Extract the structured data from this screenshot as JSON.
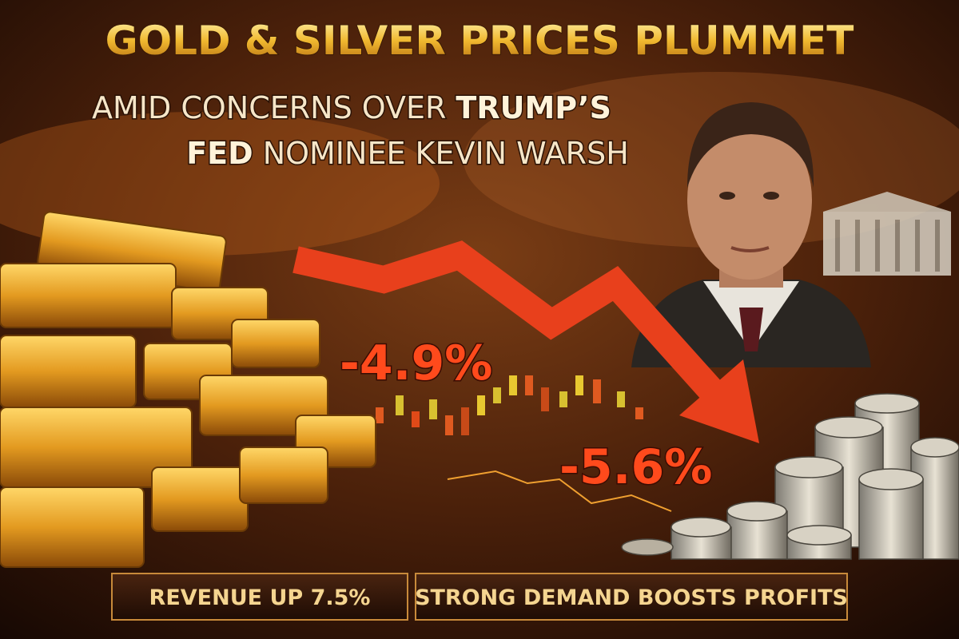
{
  "header": {
    "title": "GOLD & SILVER PRICES PLUMMET",
    "subtitle_lines": [
      [
        "AMID CONCERNS OVER",
        "TRUMP’S"
      ],
      [
        "FED",
        "NOMINEE KEVIN WARSH"
      ]
    ]
  },
  "callouts": [
    "-4.9%",
    "-5.6%"
  ],
  "banners": [
    "REVENUE UP 7.5%",
    "STRONG DEMAND BOOSTS PROFITS"
  ]
}
